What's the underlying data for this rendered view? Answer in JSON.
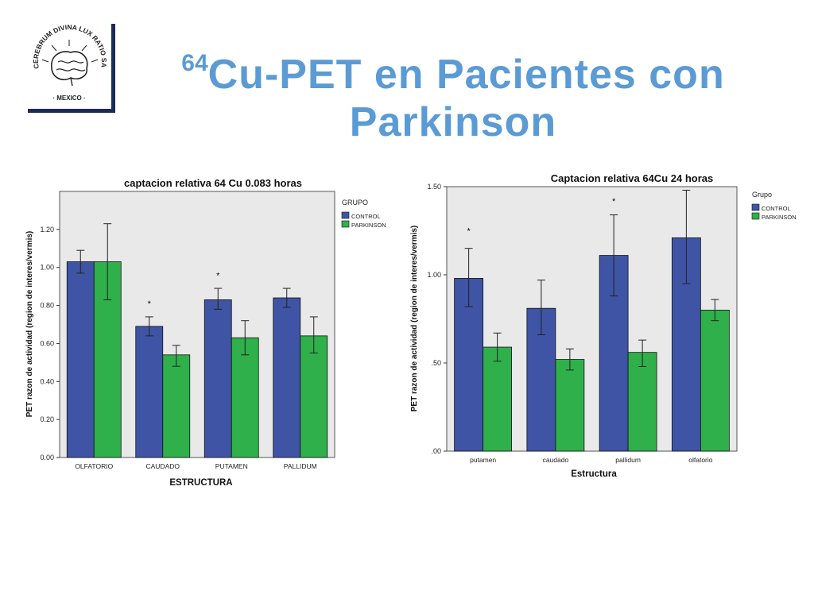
{
  "logo": {
    "icon": "brain-seal-icon",
    "text": "CEREBRUM · DIVINA LUX RATIO SALUS SCIENTIAE · MEXICO ·"
  },
  "title": {
    "superscript": "64",
    "line1": "Cu-PET en Pacientes con",
    "line2": "Parkinson"
  },
  "colors": {
    "control": "#3f54a4",
    "parkinson": "#2fb04a",
    "plot_bg": "#e9e9e9",
    "title": "#5b9bd5"
  },
  "chart_data": [
    {
      "type": "bar",
      "title": "captacion relativa 64 Cu 0.083 horas",
      "xlabel": "ESTRUCTURA",
      "ylabel": "PET razon de actividad (region de interes/vermis)",
      "categories": [
        "OLFATORIO",
        "CAUDADO",
        "PUTAMEN",
        "PALLIDUM"
      ],
      "ylim": [
        0,
        1.4
      ],
      "yticks": [
        0,
        0.2,
        0.4,
        0.6,
        0.8,
        1.0,
        1.2
      ],
      "ytick_labels": [
        "0.00",
        "0.20",
        "0.40",
        "0.60",
        "0.80",
        "1.00",
        "1.20"
      ],
      "legend_title": "GRUPO",
      "legend_position": "right",
      "grid": false,
      "series": [
        {
          "name": "CONTROL",
          "values": [
            1.03,
            0.69,
            0.83,
            0.84
          ],
          "err_low": [
            0.97,
            0.64,
            0.78,
            0.79
          ],
          "err_high": [
            1.09,
            0.74,
            0.89,
            0.89
          ]
        },
        {
          "name": "PARKINSON",
          "values": [
            1.03,
            0.54,
            0.63,
            0.64
          ],
          "err_low": [
            0.83,
            0.48,
            0.54,
            0.55
          ],
          "err_high": [
            1.23,
            0.59,
            0.72,
            0.74
          ]
        }
      ],
      "annotations": [
        {
          "text": "*",
          "category": "CAUDADO",
          "series": "CONTROL",
          "y": 0.81
        },
        {
          "text": "*",
          "category": "PUTAMEN",
          "series": "CONTROL",
          "y": 0.96
        }
      ]
    },
    {
      "type": "bar",
      "title": "Captacion relativa 64Cu 24 horas",
      "xlabel": "Estructura",
      "ylabel": "PET razon de actividad (region de interes/vermis)",
      "categories": [
        "putamen",
        "caudado",
        "pallidum",
        "olfatorio"
      ],
      "ylim": [
        0,
        1.5
      ],
      "yticks": [
        0,
        0.5,
        1.0,
        1.5
      ],
      "ytick_labels": [
        ".00",
        ".50",
        "1.00",
        "1.50"
      ],
      "legend_title": "Grupo",
      "legend_position": "right",
      "grid": false,
      "series": [
        {
          "name": "CONTROL",
          "values": [
            0.98,
            0.81,
            1.11,
            1.21
          ],
          "err_low": [
            0.82,
            0.66,
            0.88,
            0.95
          ],
          "err_high": [
            1.15,
            0.97,
            1.34,
            1.48
          ]
        },
        {
          "name": "PARKINSON",
          "values": [
            0.59,
            0.52,
            0.56,
            0.8
          ],
          "err_low": [
            0.51,
            0.46,
            0.48,
            0.74
          ],
          "err_high": [
            0.67,
            0.58,
            0.63,
            0.86
          ]
        }
      ],
      "annotations": [
        {
          "text": "*",
          "category": "putamen",
          "series": "CONTROL",
          "y": 1.25
        },
        {
          "text": "*",
          "category": "pallidum",
          "series": "CONTROL",
          "y": 1.42
        }
      ]
    }
  ]
}
